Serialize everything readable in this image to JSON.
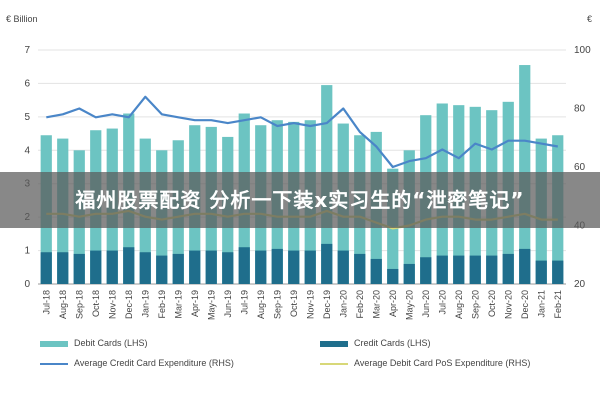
{
  "chart_data": {
    "type": "bar",
    "units": {
      "left": "€ Billion",
      "right": "€"
    },
    "categories": [
      "Jul-18",
      "Aug-18",
      "Sep-18",
      "Oct-18",
      "Nov-18",
      "Dec-18",
      "Jan-19",
      "Feb-19",
      "Mar-19",
      "Apr-19",
      "May-19",
      "Jun-19",
      "Jul-19",
      "Aug-19",
      "Sep-19",
      "Oct-19",
      "Nov-19",
      "Dec-19",
      "Jan-20",
      "Feb-20",
      "Mar-20",
      "Apr-20",
      "May-20",
      "Jun-20",
      "Jul-20",
      "Aug-20",
      "Sep-20",
      "Oct-20",
      "Nov-20",
      "Dec-20",
      "Jan-21",
      "Feb-21"
    ],
    "x_tick_labels": [
      "Jul-18",
      "Aug-18",
      "Sep-18",
      "Oct-18",
      "Nov-18",
      "Dec-18",
      "Jan-19",
      "Feb-19",
      "Mar-19",
      "Apr-19",
      "May-19",
      "Jun-19",
      "Jul-19",
      "Aug-19",
      "Sep-19",
      "Oct-19",
      "Nov-19",
      "Dec-19",
      "Jan-20",
      "Feb-20",
      "Mar-20",
      "Apr-20",
      "May-20",
      "Jun-20",
      "Jul-20",
      "Aug-20",
      "Sep-20",
      "Oct-20",
      "Nov-20",
      "Dec-20",
      "Jan-21",
      "Feb-21"
    ],
    "y_left_ticks": [
      "0",
      "1",
      "2",
      "3",
      "4",
      "5",
      "6",
      "7"
    ],
    "y_right_ticks": [
      "20",
      "40",
      "60",
      "80",
      "100"
    ],
    "ylim_left": [
      0,
      7
    ],
    "ylim_right": [
      20,
      100
    ],
    "grid": true,
    "legend_position": "bottom",
    "series": [
      {
        "name": "Debit Cards (LHS)",
        "kind": "bar",
        "axis": "left",
        "color": "#6cc4c2",
        "values": [
          4.45,
          4.35,
          4.0,
          4.6,
          4.65,
          5.1,
          4.35,
          4.0,
          4.3,
          4.75,
          4.7,
          4.4,
          5.1,
          4.75,
          4.9,
          4.85,
          4.9,
          5.95,
          4.8,
          4.45,
          4.55,
          3.45,
          4.0,
          5.05,
          5.4,
          5.35,
          5.3,
          5.2,
          5.45,
          6.55,
          4.35,
          4.45
        ]
      },
      {
        "name": "Credit Cards (LHS)",
        "kind": "bar",
        "axis": "left",
        "color": "#1f6e8c",
        "values": [
          0.95,
          0.95,
          0.9,
          1.0,
          1.0,
          1.1,
          0.95,
          0.85,
          0.9,
          1.0,
          1.0,
          0.95,
          1.1,
          1.0,
          1.05,
          1.0,
          1.0,
          1.2,
          1.0,
          0.9,
          0.75,
          0.45,
          0.6,
          0.8,
          0.85,
          0.85,
          0.85,
          0.85,
          0.9,
          1.05,
          0.7,
          0.7
        ]
      },
      {
        "name": "Average Credit Card Expenditure (RHS)",
        "kind": "line",
        "axis": "right",
        "color": "#4a86c8",
        "values": [
          77,
          78,
          80,
          77,
          78,
          77,
          84,
          78,
          77,
          76,
          76,
          75,
          76,
          77,
          74,
          75,
          74,
          75,
          80,
          72,
          67,
          60,
          62,
          63,
          66,
          63,
          68,
          66,
          69,
          69,
          68,
          67
        ]
      },
      {
        "name": "Average Debit Card PoS Expenditure (RHS)",
        "kind": "line",
        "axis": "right",
        "color": "#d8d878",
        "values": [
          44,
          44,
          43,
          44,
          44,
          45,
          43,
          42,
          43,
          44,
          44,
          43,
          44,
          44,
          43,
          43,
          43,
          45,
          43,
          43,
          41,
          39,
          40,
          42,
          43,
          43,
          42,
          42,
          43,
          44,
          42,
          42
        ]
      }
    ]
  },
  "overlay": {
    "banner_text": "福州股票配资 分析一下装x实习生的“泄密笔记”"
  }
}
